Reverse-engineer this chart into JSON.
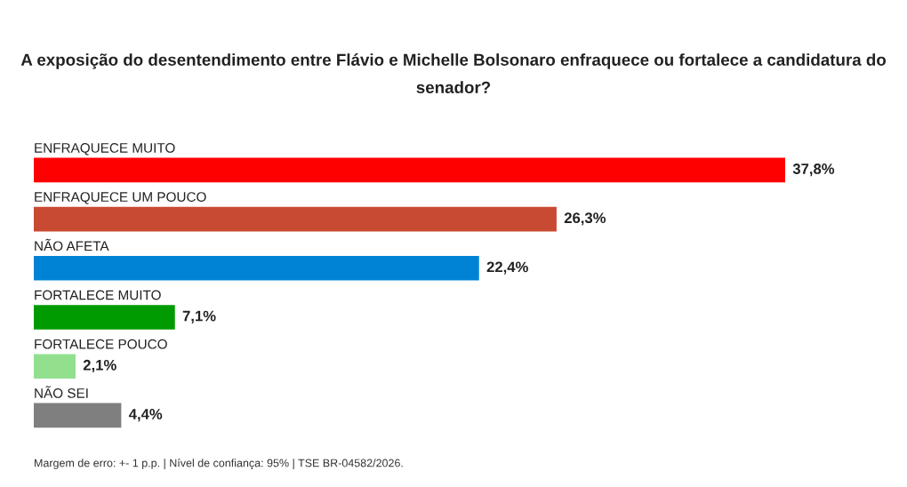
{
  "chart_data": {
    "type": "bar",
    "orientation": "horizontal",
    "title": "A exposição do desentendimento entre Flávio e Michelle Bolsonaro enfraquece ou fortalece a candidatura do senador?",
    "categories": [
      "ENFRAQUECE MUITO",
      "ENFRAQUECE UM POUCO",
      "NÃO AFETA",
      "FORTALECE MUITO",
      "FORTALECE POUCO",
      "NÃO SEI"
    ],
    "values": [
      37.8,
      26.3,
      22.4,
      7.1,
      2.1,
      4.4
    ],
    "colors": [
      "#ff0000",
      "#c94a32",
      "#0083d4",
      "#009b00",
      "#92e08e",
      "#7f7f7f"
    ],
    "value_labels": [
      "37,8%",
      "26,3%",
      "22,4%",
      "7,1%",
      "2,1%",
      "4,4%"
    ],
    "annotations": [
      "Margem de erro: +- 1 p.p. | Nível de confiança: 95% | TSE BR-04582/2026."
    ]
  }
}
